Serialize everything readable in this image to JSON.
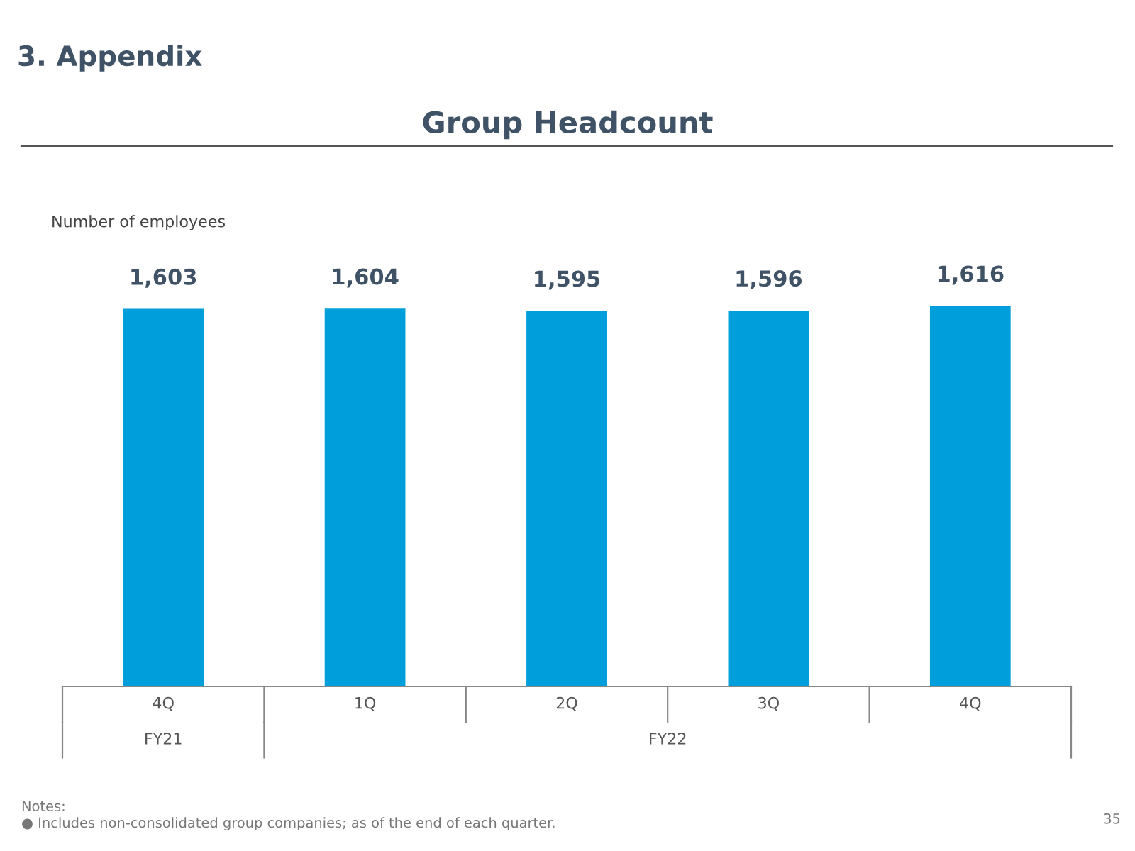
{
  "chart_data": {
    "type": "bar",
    "title": "Group Headcount",
    "ylabel": "Number of employees",
    "categories": [
      "4Q",
      "1Q",
      "2Q",
      "3Q",
      "4Q"
    ],
    "values": [
      1603,
      1604,
      1595,
      1596,
      1616
    ],
    "value_labels": [
      "1,603",
      "1,604",
      "1,595",
      "1,596",
      "1,616"
    ],
    "color": "#009fdb",
    "annotations": [
      "3. Appendix",
      "FY21",
      "FY22",
      "Notes:\n● Includes non-consolidated group companies; as of the end of each quarter.",
      "35"
    ]
  }
}
